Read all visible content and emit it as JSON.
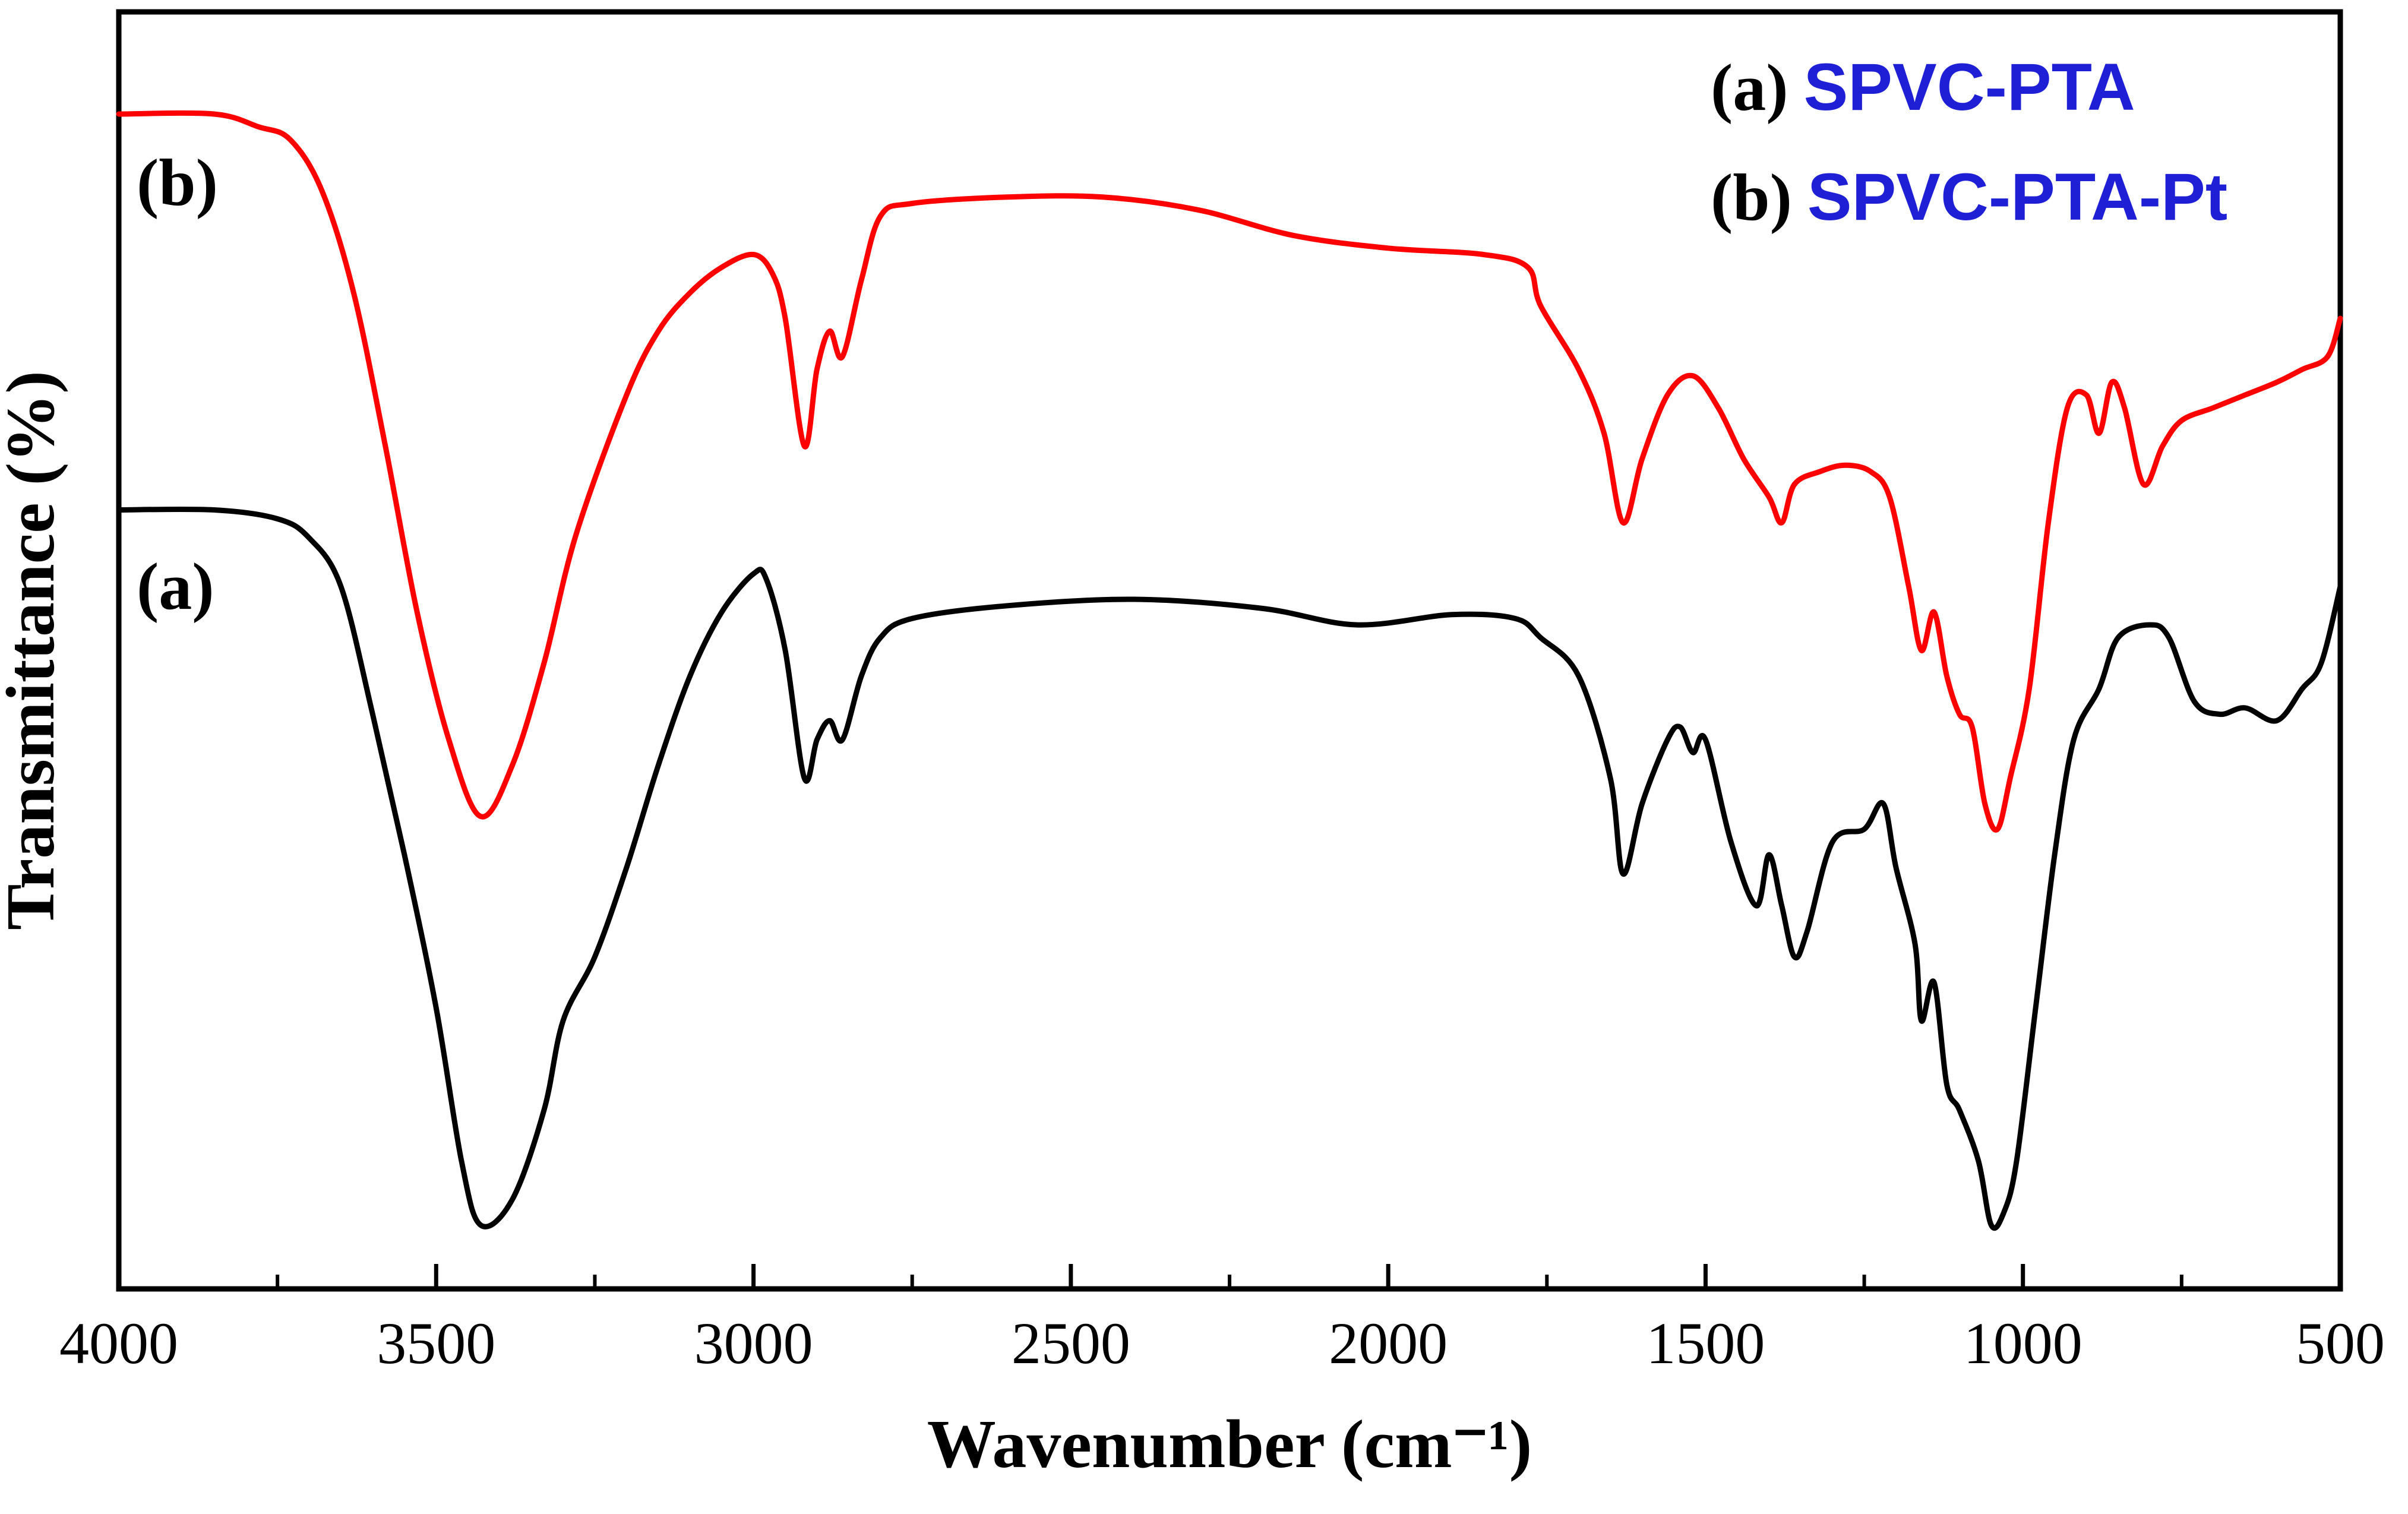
{
  "chart_data": {
    "type": "line",
    "title": "",
    "xlabel": "Wavenumber (cm⁻¹)",
    "ylabel": "Transmittance (%)",
    "xlim": [
      4000,
      500
    ],
    "ylim": [
      0,
      100
    ],
    "x_ticks": [
      "4000",
      "3500",
      "3000",
      "2500",
      "2000",
      "1500",
      "1000",
      "500"
    ],
    "x_tick_values": [
      4000,
      3500,
      3000,
      2500,
      2000,
      1500,
      1000,
      500
    ],
    "grid": false,
    "legend_position": "top-right",
    "legend": [
      {
        "key": "(a)",
        "name": "SPVC-PTA",
        "color": "#1f1fd6"
      },
      {
        "key": "(b)",
        "name": "SPVC-PTA-Pt",
        "color": "#1f1fd6"
      }
    ],
    "series": [
      {
        "name": "SPVC-PTA",
        "curve_label": "(a)",
        "color": "#000000",
        "points": [
          [
            4000,
            61
          ],
          [
            3850,
            61
          ],
          [
            3750,
            60.3
          ],
          [
            3700,
            58.8
          ],
          [
            3650,
            55
          ],
          [
            3600,
            45
          ],
          [
            3550,
            34
          ],
          [
            3500,
            22
          ],
          [
            3460,
            10
          ],
          [
            3430,
            5
          ],
          [
            3380,
            7
          ],
          [
            3330,
            14
          ],
          [
            3300,
            21
          ],
          [
            3250,
            26
          ],
          [
            3200,
            33
          ],
          [
            3150,
            41
          ],
          [
            3100,
            48
          ],
          [
            3050,
            53
          ],
          [
            3000,
            56
          ],
          [
            2980,
            55.6
          ],
          [
            2950,
            50
          ],
          [
            2920,
            40
          ],
          [
            2900,
            43
          ],
          [
            2880,
            44.5
          ],
          [
            2860,
            43
          ],
          [
            2830,
            48
          ],
          [
            2800,
            51
          ],
          [
            2750,
            52.5
          ],
          [
            2600,
            53.5
          ],
          [
            2400,
            54
          ],
          [
            2200,
            53.3
          ],
          [
            2050,
            52
          ],
          [
            1900,
            52.8
          ],
          [
            1800,
            52.5
          ],
          [
            1760,
            51
          ],
          [
            1700,
            48
          ],
          [
            1650,
            40
          ],
          [
            1630,
            32.5
          ],
          [
            1600,
            38
          ],
          [
            1560,
            43
          ],
          [
            1540,
            44
          ],
          [
            1520,
            42
          ],
          [
            1500,
            43
          ],
          [
            1460,
            35
          ],
          [
            1420,
            30
          ],
          [
            1400,
            34
          ],
          [
            1380,
            30
          ],
          [
            1360,
            26
          ],
          [
            1340,
            28
          ],
          [
            1300,
            35
          ],
          [
            1250,
            36
          ],
          [
            1220,
            38
          ],
          [
            1200,
            33
          ],
          [
            1170,
            27
          ],
          [
            1160,
            21
          ],
          [
            1140,
            24
          ],
          [
            1120,
            16
          ],
          [
            1100,
            14
          ],
          [
            1070,
            10
          ],
          [
            1050,
            5
          ],
          [
            1030,
            6
          ],
          [
            1010,
            10
          ],
          [
            980,
            22
          ],
          [
            950,
            34
          ],
          [
            920,
            43
          ],
          [
            880,
            47
          ],
          [
            850,
            51
          ],
          [
            800,
            52
          ],
          [
            770,
            51
          ],
          [
            730,
            46
          ],
          [
            690,
            45
          ],
          [
            650,
            45.5
          ],
          [
            600,
            44.5
          ],
          [
            560,
            47
          ],
          [
            530,
            49
          ],
          [
            500,
            55
          ]
        ]
      },
      {
        "name": "SPVC-PTA-Pt",
        "curve_label": "(b)",
        "color": "#ff0000",
        "points": [
          [
            4000,
            92
          ],
          [
            3850,
            92
          ],
          [
            3780,
            91
          ],
          [
            3730,
            90
          ],
          [
            3680,
            86
          ],
          [
            3630,
            78
          ],
          [
            3580,
            66
          ],
          [
            3530,
            53
          ],
          [
            3480,
            43
          ],
          [
            3430,
            37
          ],
          [
            3380,
            41
          ],
          [
            3330,
            49
          ],
          [
            3280,
            59
          ],
          [
            3200,
            70
          ],
          [
            3150,
            75
          ],
          [
            3100,
            78
          ],
          [
            3050,
            80
          ],
          [
            3000,
            81
          ],
          [
            2970,
            79.5
          ],
          [
            2950,
            76
          ],
          [
            2920,
            66
          ],
          [
            2900,
            72
          ],
          [
            2880,
            75
          ],
          [
            2860,
            73
          ],
          [
            2830,
            79
          ],
          [
            2800,
            84
          ],
          [
            2750,
            85
          ],
          [
            2600,
            85.5
          ],
          [
            2450,
            85.5
          ],
          [
            2300,
            84.5
          ],
          [
            2150,
            82.5
          ],
          [
            2000,
            81.5
          ],
          [
            1850,
            81
          ],
          [
            1780,
            80
          ],
          [
            1760,
            77
          ],
          [
            1700,
            72
          ],
          [
            1660,
            67
          ],
          [
            1630,
            60
          ],
          [
            1600,
            65
          ],
          [
            1560,
            70
          ],
          [
            1520,
            71.5
          ],
          [
            1480,
            69
          ],
          [
            1440,
            65
          ],
          [
            1400,
            62
          ],
          [
            1380,
            60
          ],
          [
            1360,
            63
          ],
          [
            1320,
            64
          ],
          [
            1280,
            64.5
          ],
          [
            1240,
            64
          ],
          [
            1210,
            62
          ],
          [
            1180,
            55
          ],
          [
            1160,
            50
          ],
          [
            1140,
            53
          ],
          [
            1120,
            48
          ],
          [
            1100,
            45
          ],
          [
            1080,
            44
          ],
          [
            1060,
            38
          ],
          [
            1040,
            36
          ],
          [
            1020,
            40
          ],
          [
            990,
            47
          ],
          [
            960,
            60
          ],
          [
            930,
            69
          ],
          [
            900,
            70
          ],
          [
            880,
            67
          ],
          [
            860,
            71
          ],
          [
            840,
            69
          ],
          [
            810,
            63
          ],
          [
            780,
            66
          ],
          [
            750,
            68
          ],
          [
            700,
            69
          ],
          [
            650,
            70
          ],
          [
            600,
            71
          ],
          [
            560,
            72
          ],
          [
            520,
            73
          ],
          [
            500,
            76
          ]
        ]
      }
    ]
  }
}
